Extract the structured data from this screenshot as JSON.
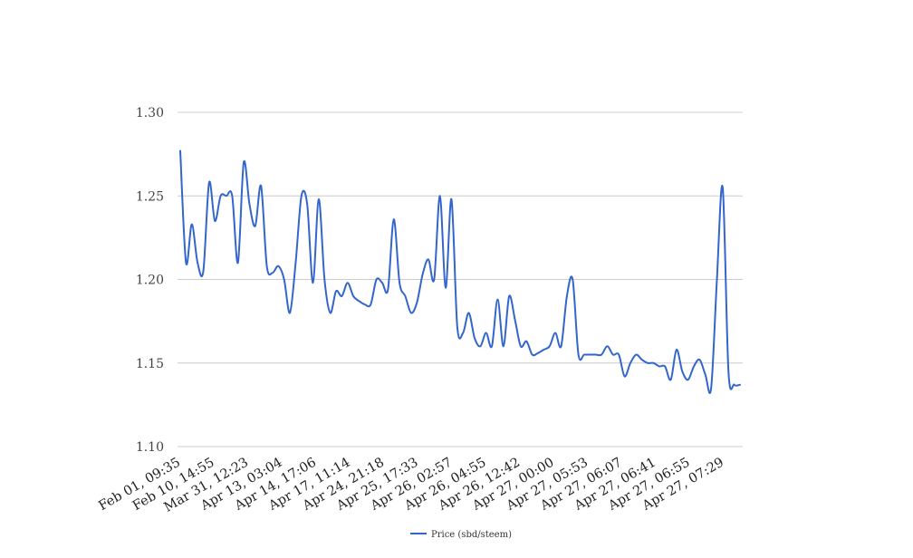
{
  "chart_data": {
    "type": "line",
    "title": "",
    "xlabel": "",
    "ylabel": "",
    "ylim": [
      1.1,
      1.3
    ],
    "y_ticks": [
      "1.30",
      "1.25",
      "1.20",
      "1.15",
      "1.10"
    ],
    "y_tick_values": [
      1.3,
      1.25,
      1.2,
      1.15,
      1.1
    ],
    "x_tick_labels": [
      "Feb 01, 09:35",
      "Feb 10, 14:55",
      "Mar 31, 12:23",
      "Apr 13, 03:04",
      "Apr 14, 17:06",
      "Apr 17, 11:14",
      "Apr 24, 21:18",
      "Apr 25, 17:33",
      "Apr 26, 02:57",
      "Apr 26, 04:55",
      "Apr 26, 12:42",
      "Apr 27, 00:00",
      "Apr 27, 05:53",
      "Apr 27, 06:07",
      "Apr 27, 06:41",
      "Apr 27, 06:55",
      "Apr 27, 07:29"
    ],
    "grid": true,
    "legend_position": "bottom",
    "series": [
      {
        "name": "Price (sbd/steem)",
        "color": "#3366cc",
        "values": [
          1.277,
          1.21,
          1.233,
          1.21,
          1.205,
          1.258,
          1.235,
          1.25,
          1.25,
          1.25,
          1.21,
          1.27,
          1.245,
          1.232,
          1.256,
          1.208,
          1.204,
          1.208,
          1.2,
          1.18,
          1.21,
          1.25,
          1.245,
          1.198,
          1.248,
          1.2,
          1.18,
          1.193,
          1.19,
          1.198,
          1.19,
          1.187,
          1.185,
          1.185,
          1.2,
          1.198,
          1.194,
          1.236,
          1.198,
          1.19,
          1.18,
          1.186,
          1.203,
          1.212,
          1.2,
          1.25,
          1.195,
          1.248,
          1.172,
          1.168,
          1.18,
          1.165,
          1.16,
          1.168,
          1.16,
          1.188,
          1.16,
          1.19,
          1.176,
          1.16,
          1.163,
          1.155,
          1.156,
          1.158,
          1.16,
          1.168,
          1.16,
          1.19,
          1.2,
          1.155,
          1.155,
          1.155,
          1.155,
          1.155,
          1.16,
          1.155,
          1.155,
          1.142,
          1.15,
          1.155,
          1.152,
          1.15,
          1.15,
          1.148,
          1.148,
          1.14,
          1.158,
          1.145,
          1.14,
          1.148,
          1.152,
          1.143,
          1.135,
          1.2,
          1.255,
          1.145,
          1.137,
          1.137
        ]
      }
    ]
  }
}
